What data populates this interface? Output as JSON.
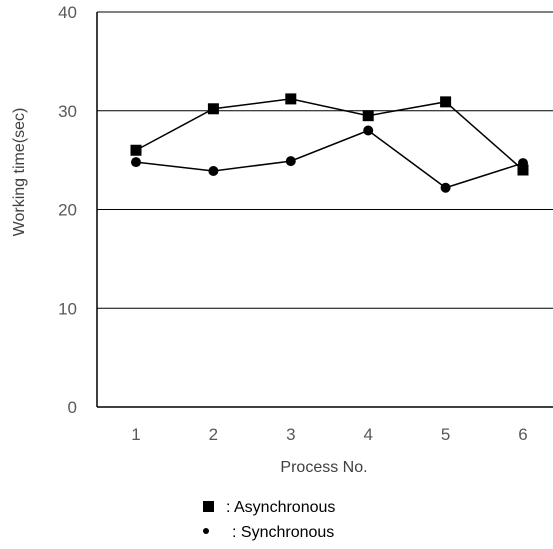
{
  "chart_data": {
    "type": "line",
    "xlabel": "Process No.",
    "ylabel": "Working time(sec)",
    "ylim": [
      0,
      40
    ],
    "yticks": [
      "0",
      "10",
      "20",
      "30",
      "40"
    ],
    "categories": [
      "1",
      "2",
      "3",
      "4",
      "5",
      "6"
    ],
    "grid": "horizontal",
    "legend_position": "bottom",
    "series": [
      {
        "name": ": Asynchronous",
        "marker": "square",
        "color": "#000000",
        "values": [
          26.0,
          30.2,
          31.2,
          29.5,
          30.9,
          24.0
        ]
      },
      {
        "name": ": Synchronous",
        "marker": "circle",
        "color": "#000000",
        "values": [
          24.8,
          23.9,
          24.9,
          28.0,
          22.2,
          24.7
        ]
      }
    ]
  }
}
